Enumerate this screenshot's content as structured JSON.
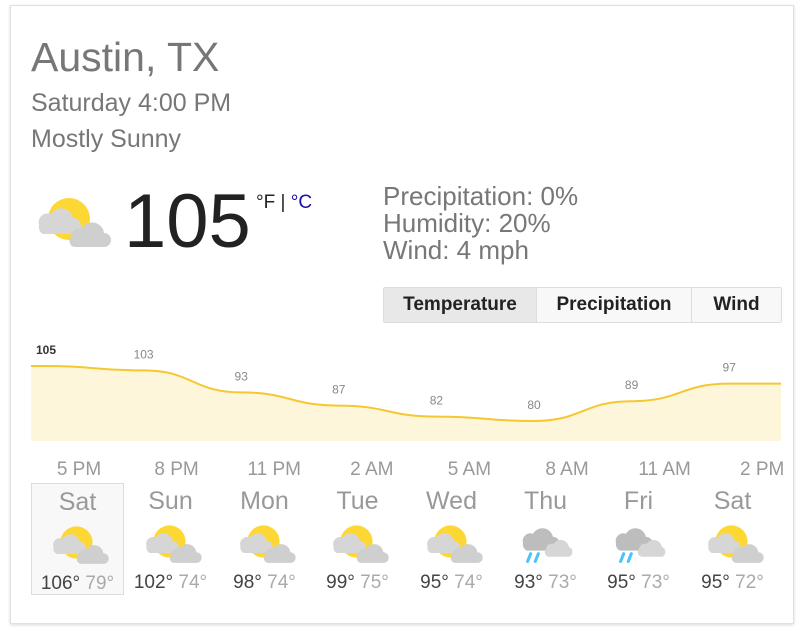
{
  "location": "Austin, TX",
  "datetime": "Saturday 4:00 PM",
  "condition": "Mostly Sunny",
  "current": {
    "temp": "105",
    "unit_f": "°F",
    "separator": "|",
    "unit_c": "°C"
  },
  "details": [
    "Precipitation: 0%",
    "Humidity: 20%",
    "Wind: 4 mph"
  ],
  "tabs": [
    "Temperature",
    "Precipitation",
    "Wind"
  ],
  "hourly": {
    "values": [
      105,
      103,
      93,
      87,
      82,
      80,
      89,
      97
    ],
    "times": [
      "5 PM",
      "8 PM",
      "11 PM",
      "2 AM",
      "5 AM",
      "8 AM",
      "11 AM",
      "2 PM"
    ]
  },
  "daily": [
    {
      "day": "Sat",
      "high": "106°",
      "low": "79°"
    },
    {
      "day": "Sun",
      "high": "102°",
      "low": "74°"
    },
    {
      "day": "Mon",
      "high": "98°",
      "low": "74°"
    },
    {
      "day": "Tue",
      "high": "99°",
      "low": "75°"
    },
    {
      "day": "Wed",
      "high": "95°",
      "low": "74°"
    },
    {
      "day": "Thu",
      "high": "93°",
      "low": "73°"
    },
    {
      "day": "Fri",
      "high": "95°",
      "low": "73°"
    },
    {
      "day": "Sat",
      "high": "95°",
      "low": "72°"
    }
  ]
}
